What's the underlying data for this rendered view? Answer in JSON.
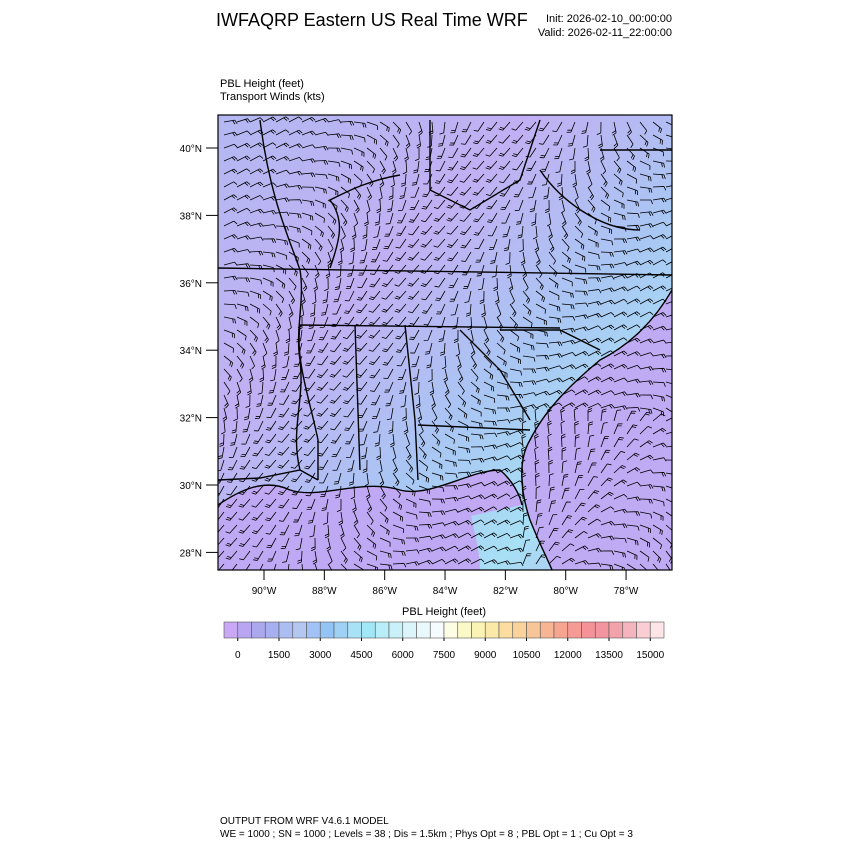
{
  "header": {
    "title": "IWFAQRP Eastern US Real Time WRF",
    "init": "Init: 2026-02-10_00:00:00",
    "valid": "Valid: 2026-02-11_22:00:00"
  },
  "fields": [
    "PBL Height   (feet)",
    "Transport Winds   (kts)"
  ],
  "map": {
    "lat_ticks": [
      {
        "value": 40,
        "label": "40°N"
      },
      {
        "value": 38,
        "label": "38°N"
      },
      {
        "value": 36,
        "label": "36°N"
      },
      {
        "value": 34,
        "label": "34°N"
      },
      {
        "value": 32,
        "label": "32°N"
      },
      {
        "value": 30,
        "label": "30°N"
      },
      {
        "value": 28,
        "label": "28°N"
      }
    ],
    "lon_ticks": [
      {
        "value": -90,
        "label": "90°W"
      },
      {
        "value": -88,
        "label": "88°W"
      },
      {
        "value": -86,
        "label": "86°W"
      },
      {
        "value": -84,
        "label": "84°W"
      },
      {
        "value": -82,
        "label": "82°W"
      },
      {
        "value": -80,
        "label": "80°W"
      },
      {
        "value": -78,
        "label": "78°W"
      }
    ]
  },
  "colorbar": {
    "title": "PBL Height  (feet)",
    "colors": [
      "#c9a8f5",
      "#b9a6f2",
      "#aca8ee",
      "#a6aff0",
      "#abbdf2",
      "#b3c7f1",
      "#a2c1f5",
      "#92c4f5",
      "#9fd1f5",
      "#a9e2f7",
      "#a2e7f7",
      "#b7eef9",
      "#c9f1f9",
      "#dcf5fa",
      "#e8f8fb",
      "#f6fbff",
      "#fdfde6",
      "#fcf9c8",
      "#fbf3b3",
      "#fbe9a8",
      "#fbdda0",
      "#fad29c",
      "#f8c598",
      "#f8b594",
      "#f7a491",
      "#f59a94",
      "#f49298",
      "#f3959e",
      "#f2a2ab",
      "#f5b5bf",
      "#f9cdd2",
      "#fde4e7"
    ],
    "ticks": [
      0,
      1500,
      3000,
      4500,
      6000,
      7500,
      9000,
      10500,
      12000,
      13500,
      15000
    ]
  },
  "footer": [
    "OUTPUT FROM WRF V4.6.1 MODEL",
    "WE = 1000 ; SN = 1000 ; Levels = 38 ; Dis = 1.5km ; Phys Opt = 8 ; PBL Opt = 1 ; Cu Opt = 3"
  ]
}
